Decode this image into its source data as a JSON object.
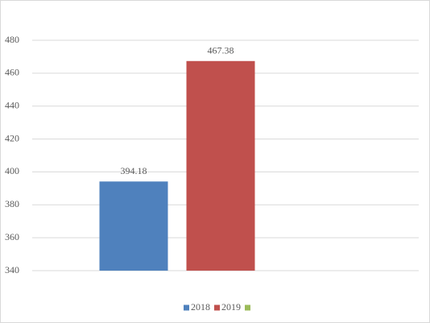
{
  "chart_data": {
    "type": "bar",
    "categories": [
      null
    ],
    "series": [
      {
        "name": "2018",
        "color": "#4f81bd",
        "values": [
          394.18
        ]
      },
      {
        "name": "2019",
        "color": "#c0504d",
        "values": [
          467.38
        ]
      },
      {
        "name": null,
        "color": "#9bbb59",
        "values": [
          null
        ]
      }
    ],
    "ylim": [
      340,
      480
    ],
    "yticks": [
      340,
      360,
      380,
      400,
      420,
      440,
      460,
      480
    ],
    "grid": true,
    "legend": "bottom"
  }
}
